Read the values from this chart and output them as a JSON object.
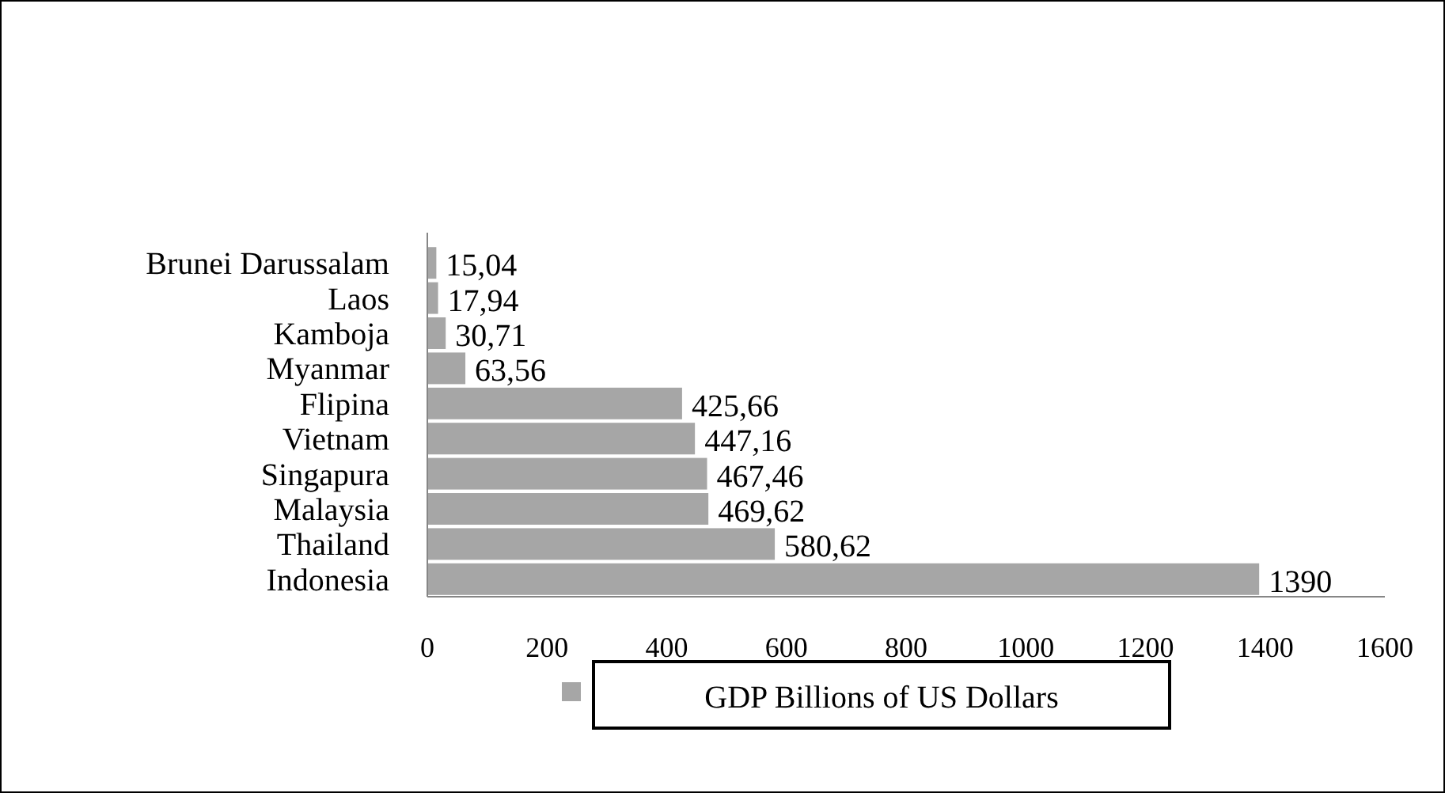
{
  "chart_data": {
    "type": "bar",
    "orientation": "horizontal",
    "categories": [
      "Brunei Darussalam",
      "Laos",
      "Kamboja",
      "Myanmar",
      "Flipina",
      "Vietnam",
      "Singapura",
      "Malaysia",
      "Thailand",
      "Indonesia"
    ],
    "series": [
      {
        "name": "GDP Billions of US Dollars",
        "color": "#a6a6a6",
        "values": [
          15.04,
          17.94,
          30.71,
          63.56,
          425.66,
          447.16,
          467.46,
          469.62,
          580.62,
          1390
        ],
        "value_labels": [
          "15,04",
          "17,94",
          "30,71",
          "63,56",
          "425,66",
          "447,16",
          "467,46",
          "469,62",
          "580,62",
          "1390"
        ]
      }
    ],
    "xlim": [
      0,
      1600
    ],
    "xticks": [
      0,
      200,
      400,
      600,
      800,
      1000,
      1200,
      1400,
      1600
    ],
    "grid": false,
    "legend": "bottom"
  }
}
